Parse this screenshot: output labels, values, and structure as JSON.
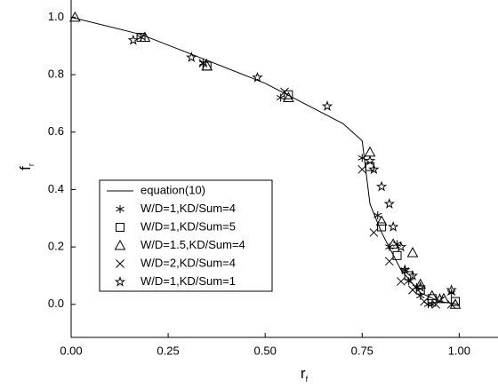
{
  "chart_data": {
    "type": "scatter",
    "xlabel": "r",
    "xlabel_sub": "f",
    "ylabel": "f",
    "ylabel_sub": "r",
    "xlim": [
      0,
      1.1
    ],
    "ylim": [
      -0.115,
      1.06
    ],
    "xticks": [
      {
        "value": 0,
        "label": "0.00"
      },
      {
        "value": 0.25,
        "label": "0.25"
      },
      {
        "value": 0.5,
        "label": "0.50"
      },
      {
        "value": 0.75,
        "label": "0.75"
      },
      {
        "value": 1,
        "label": "1.00"
      }
    ],
    "yticks": [
      {
        "value": 0,
        "label": "0.0"
      },
      {
        "value": 0.2,
        "label": "0.2"
      },
      {
        "value": 0.4,
        "label": "0.4"
      },
      {
        "value": 0.6,
        "label": "0.6"
      },
      {
        "value": 0.8,
        "label": "0.8"
      },
      {
        "value": 1,
        "label": "1.0"
      }
    ],
    "legend": "lower-left",
    "series": [
      {
        "name": "equation(10)",
        "color": "#000000",
        "marker": "line",
        "x": [
          0,
          0.18,
          0.35,
          0.5,
          0.6,
          0.7,
          0.75,
          0.77,
          0.8,
          0.85,
          0.9,
          0.95,
          1.0
        ],
        "values": [
          1.0,
          0.94,
          0.85,
          0.77,
          0.7,
          0.63,
          0.57,
          0.35,
          0.25,
          0.12,
          0.04,
          0.01,
          0.0
        ]
      },
      {
        "name": "W/D=1,KD/Sum=4",
        "color": "#000000",
        "marker": "asterisk",
        "x": [
          0.18,
          0.34,
          0.54,
          0.75,
          0.79,
          0.82,
          0.84,
          0.86,
          0.87,
          0.89,
          0.9,
          0.92,
          0.93,
          0.98
        ],
        "values": [
          0.93,
          0.84,
          0.72,
          0.51,
          0.31,
          0.2,
          0.21,
          0.12,
          0.08,
          0.06,
          0.03,
          0.0,
          0.0,
          0.04
        ]
      },
      {
        "name": "W/D=1,KD/Sum=5",
        "color": "#000000",
        "marker": "square",
        "x": [
          0.18,
          0.35,
          0.56,
          0.77,
          0.8,
          0.84,
          0.87,
          0.9,
          0.93,
          0.99
        ],
        "values": [
          0.93,
          0.83,
          0.73,
          0.48,
          0.27,
          0.17,
          0.1,
          0.05,
          0.02,
          0.01
        ]
      },
      {
        "name": "W/D=1.5,KD/Sum=4",
        "color": "#000000",
        "marker": "triangle",
        "x": [
          0.01,
          0.19,
          0.35,
          0.56,
          0.77,
          0.8,
          0.83,
          0.88,
          0.9,
          0.93,
          0.96,
          0.99
        ],
        "values": [
          1.0,
          0.93,
          0.83,
          0.72,
          0.53,
          0.29,
          0.21,
          0.18,
          0.07,
          0.03,
          0.02,
          0.0
        ]
      },
      {
        "name": "W/D=2,KD/Sum=4",
        "color": "#000000",
        "marker": "cross",
        "x": [
          0.34,
          0.55,
          0.75,
          0.78,
          0.82,
          0.85,
          0.88,
          0.91,
          0.94,
          0.98
        ],
        "values": [
          0.84,
          0.74,
          0.47,
          0.25,
          0.15,
          0.08,
          0.05,
          0.01,
          0.0,
          0.0
        ]
      },
      {
        "name": "W/D=1,KD/Sum=1",
        "color": "#000000",
        "marker": "star",
        "x": [
          0.16,
          0.31,
          0.48,
          0.66,
          0.77,
          0.78,
          0.8,
          0.82,
          0.83,
          0.85,
          0.86,
          0.88,
          0.9,
          0.95,
          0.98
        ],
        "values": [
          0.92,
          0.86,
          0.79,
          0.69,
          0.5,
          0.47,
          0.41,
          0.35,
          0.27,
          0.2,
          0.12,
          0.1,
          0.06,
          0.02,
          0.05
        ]
      }
    ]
  }
}
